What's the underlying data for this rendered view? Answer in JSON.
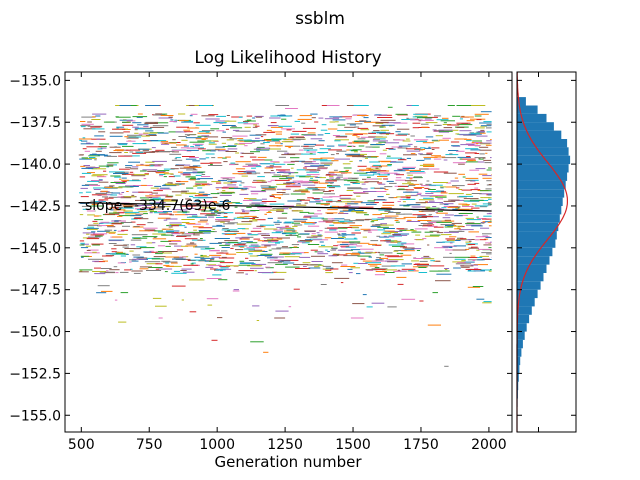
{
  "figure": {
    "suptitle": "ssblm"
  },
  "chart_data": [
    {
      "type": "line",
      "title": "Log Likelihood History",
      "xlabel": "Generation number",
      "ylabel": "",
      "xlim": [
        440,
        2085
      ],
      "ylim": [
        -156,
        -134.5
      ],
      "x_ticks": [
        500,
        750,
        1000,
        1250,
        1500,
        1750,
        2000
      ],
      "x_tick_labels": [
        "500",
        "750",
        "1000",
        "1250",
        "1500",
        "1750",
        "2000"
      ],
      "y_ticks": [
        -135.0,
        -137.5,
        -140.0,
        -142.5,
        -145.0,
        -147.5,
        -150.0,
        -152.5,
        -155.0
      ],
      "y_tick_labels": [
        "−135.0",
        "−137.5",
        "−140.0",
        "−142.5",
        "−145.0",
        "−147.5",
        "−150.0",
        "−152.5",
        "−155.0"
      ],
      "grid": false,
      "legend": "none",
      "trace_summary": {
        "x_range": [
          490,
          2010
        ],
        "core_band": [
          -146.5,
          -137.0
        ],
        "center": -142.2,
        "spread_sd": 2.3,
        "min": -154.9,
        "max": -136.5
      },
      "trend_line": {
        "x": [
          490,
          2010
        ],
        "y": [
          -142.3,
          -142.8
        ],
        "color": "#000000"
      },
      "annotation": "slope=-334.7(63)e-6",
      "series_colors": [
        "#1f77b4",
        "#ff7f0e",
        "#2ca02c",
        "#d62728",
        "#9467bd",
        "#8c564b",
        "#e377c2",
        "#7f7f7f",
        "#bcbd22",
        "#17becf"
      ]
    },
    {
      "type": "bar",
      "orientation": "horizontal",
      "description_of": "histogram of log likelihood",
      "bins_y_start": [
        -155.0,
        -154.5,
        -154.0,
        -153.5,
        -153.0,
        -152.5,
        -152.0,
        -151.5,
        -151.0,
        -150.5,
        -150.0,
        -149.5,
        -149.0,
        -148.5,
        -148.0,
        -147.5,
        -147.0,
        -146.5,
        -146.0,
        -145.5,
        -145.0,
        -144.5,
        -144.0,
        -143.5,
        -143.0,
        -142.5,
        -142.0,
        -141.5,
        -141.0,
        -140.5,
        -140.0,
        -139.5,
        -139.0,
        -138.5,
        -138.0,
        -137.5,
        -137.0,
        -136.5
      ],
      "bin_width": 0.5,
      "counts": [
        0.002,
        0.004,
        0.006,
        0.008,
        0.012,
        0.016,
        0.022,
        0.03,
        0.04,
        0.052,
        0.066,
        0.082,
        0.1,
        0.12,
        0.14,
        0.16,
        0.18,
        0.2,
        0.22,
        0.24,
        0.26,
        0.27,
        0.28,
        0.29,
        0.3,
        0.31,
        0.32,
        0.33,
        0.34,
        0.35,
        0.36,
        0.35,
        0.34,
        0.3,
        0.25,
        0.2,
        0.14,
        0.06
      ],
      "xlim": [
        0,
        0.4
      ],
      "normal_fit": {
        "mean": -142.2,
        "sd": 2.3,
        "color": "#d62728"
      },
      "bar_color": "#1f77b4"
    }
  ]
}
